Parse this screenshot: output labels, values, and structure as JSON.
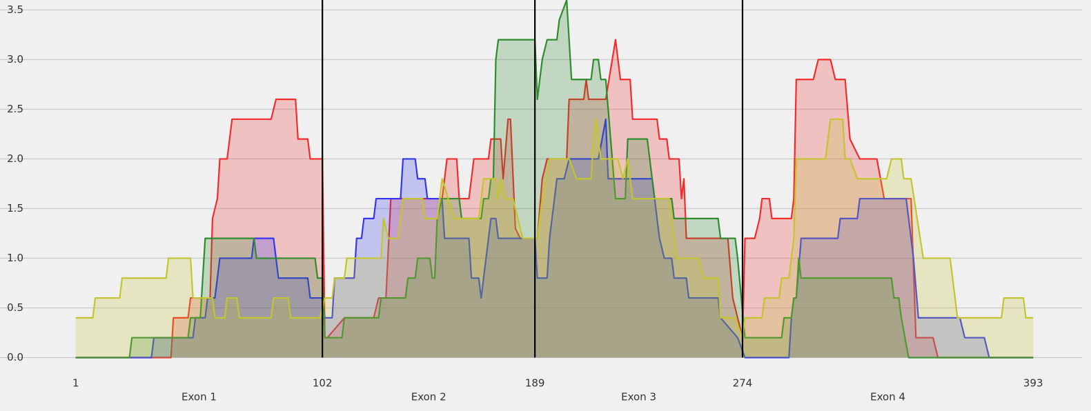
{
  "chart_data": {
    "type": "area",
    "xlim": [
      -30,
      413
    ],
    "ylim": [
      -0.08,
      3.6
    ],
    "xticks": [
      1,
      102,
      189,
      274,
      393
    ],
    "yticks": [
      {
        "value": 0,
        "label": "0.0"
      },
      0.5,
      {
        "value": 1,
        "label": "1.0"
      },
      1.5,
      {
        "value": 2,
        "label": "2.0"
      },
      2.5,
      {
        "value": 3,
        "label": "3.0"
      },
      3.5
    ],
    "sections": [
      "Exon 1",
      "Exon 2",
      "Exon 3",
      "Exon 4"
    ],
    "vlines": [
      102,
      189,
      274
    ],
    "vline_color": "#000000",
    "grid": true,
    "series": [
      {
        "color": "#f22c2c",
        "x": [
          1,
          40,
          41,
          47,
          48,
          56,
          57,
          59,
          60,
          63,
          65,
          81,
          83,
          91,
          92,
          96,
          97,
          102,
          103,
          104,
          111,
          123,
          125,
          128,
          130,
          151,
          153,
          157,
          158,
          162,
          164,
          170,
          171,
          175,
          176,
          178,
          179,
          181,
          183,
          189,
          190,
          192,
          194,
          202,
          203,
          209,
          210,
          211,
          216,
          218,
          222,
          224,
          228,
          229,
          239,
          240,
          243,
          244,
          248,
          249,
          250,
          251,
          268,
          270,
          274,
          275,
          279,
          281,
          282,
          285,
          286,
          294,
          295,
          296,
          303,
          305,
          310,
          312,
          316,
          318,
          322,
          329,
          332,
          343,
          345,
          352,
          354,
          393
        ],
        "values": [
          0,
          0,
          0.4,
          0.4,
          0.6,
          0.6,
          1.4,
          1.6,
          2,
          2,
          2.4,
          2.4,
          2.6,
          2.6,
          2.2,
          2.2,
          2,
          2,
          0.2,
          0.2,
          0.4,
          0.4,
          0.6,
          0.6,
          1.6,
          1.6,
          2,
          2,
          1.6,
          1.6,
          2,
          2,
          2.2,
          2.2,
          1.8,
          2.4,
          2.4,
          1.3,
          1.2,
          1.2,
          1.2,
          1.8,
          2,
          2,
          2.6,
          2.6,
          2.8,
          2.6,
          2.6,
          2.6,
          3.2,
          2.8,
          2.8,
          2.4,
          2.4,
          2.2,
          2.2,
          2,
          2,
          1.6,
          1.8,
          1.2,
          1.2,
          0.6,
          0.2,
          1.2,
          1.2,
          1.4,
          1.6,
          1.6,
          1.4,
          1.4,
          1.6,
          2.8,
          2.8,
          3,
          3,
          2.8,
          2.8,
          2.2,
          2,
          2,
          1.6,
          1.6,
          0.2,
          0.2,
          0,
          0
        ]
      },
      {
        "color": "#3535f0",
        "x": [
          1,
          32,
          33,
          49,
          50,
          54,
          55,
          58,
          60,
          73,
          74,
          82,
          83,
          84,
          96,
          97,
          102,
          103,
          106,
          107,
          115,
          116,
          118,
          119,
          123,
          124,
          134,
          135,
          140,
          141,
          144,
          145,
          151,
          152,
          162,
          163,
          166,
          167,
          168,
          170,
          171,
          173,
          174,
          189,
          190,
          194,
          195,
          196,
          198,
          201,
          203,
          215,
          218,
          219,
          237,
          238,
          239,
          240,
          242,
          245,
          246,
          251,
          252,
          264,
          265,
          272,
          275,
          293,
          294,
          295,
          296,
          298,
          313,
          314,
          321,
          322,
          341,
          344,
          346,
          363,
          365,
          373,
          375,
          393
        ],
        "values": [
          0,
          0,
          0.2,
          0.2,
          0.4,
          0.4,
          0.6,
          0.6,
          1,
          1,
          1.2,
          1.2,
          1,
          0.8,
          0.8,
          0.6,
          0.6,
          0.4,
          0.4,
          0.8,
          0.8,
          1.2,
          1.2,
          1.4,
          1.4,
          1.6,
          1.6,
          2,
          2,
          1.8,
          1.8,
          1.6,
          1.6,
          1.2,
          1.2,
          0.8,
          0.8,
          0.6,
          0.8,
          1.2,
          1.4,
          1.4,
          1.2,
          1.2,
          0.8,
          0.8,
          1.2,
          1.4,
          1.8,
          1.8,
          2,
          2,
          2.4,
          1.8,
          1.8,
          1.6,
          1.4,
          1.2,
          1,
          1,
          0.8,
          0.8,
          0.6,
          0.6,
          0.4,
          0.2,
          0,
          0,
          0.4,
          0.6,
          0.6,
          1.2,
          1.2,
          1.4,
          1.4,
          1.6,
          1.6,
          1,
          0.4,
          0.4,
          0.2,
          0.2,
          0,
          0
        ]
      },
      {
        "color": "#2e8b2e",
        "x": [
          1,
          23,
          24,
          47,
          48,
          52,
          54,
          74,
          75,
          99,
          100,
          102,
          103,
          110,
          111,
          125,
          126,
          136,
          137,
          140,
          141,
          146,
          147,
          148,
          149,
          151,
          158,
          159,
          167,
          168,
          170,
          171,
          172,
          173,
          174,
          189,
          190,
          192,
          194,
          198,
          199,
          202,
          204,
          212,
          213,
          215,
          216,
          218,
          222,
          226,
          227,
          235,
          238,
          245,
          246,
          248,
          264,
          265,
          271,
          272,
          275,
          290,
          291,
          294,
          295,
          296,
          297,
          298,
          335,
          336,
          338,
          339,
          342,
          393
        ],
        "values": [
          0,
          0,
          0.2,
          0.2,
          0.4,
          0.4,
          1.2,
          1.2,
          1,
          1,
          0.8,
          0.8,
          0.2,
          0.2,
          0.4,
          0.4,
          0.6,
          0.6,
          0.8,
          0.8,
          1,
          1,
          0.8,
          0.8,
          1.4,
          1.6,
          1.6,
          1.4,
          1.4,
          1.6,
          1.6,
          1.8,
          1.8,
          3,
          3.2,
          3.2,
          2.6,
          3,
          3.2,
          3.2,
          3.4,
          3.6,
          2.8,
          2.8,
          3,
          3,
          2.8,
          2.8,
          1.6,
          1.6,
          2.2,
          2.2,
          1.6,
          1.6,
          1.4,
          1.4,
          1.4,
          1.2,
          1.2,
          1,
          0.2,
          0.2,
          0.4,
          0.4,
          0.6,
          0.6,
          1,
          0.8,
          0.8,
          0.6,
          0.6,
          0.4,
          0,
          0
        ]
      },
      {
        "color": "#c4c431",
        "x": [
          1,
          8,
          9,
          19,
          20,
          38,
          39,
          48,
          49,
          57,
          58,
          62,
          63,
          67,
          68,
          81,
          82,
          88,
          89,
          101,
          103,
          106,
          107,
          111,
          112,
          126,
          127,
          129,
          133,
          135,
          143,
          144,
          149,
          151,
          156,
          166,
          168,
          173,
          174,
          175,
          177,
          180,
          184,
          190,
          192,
          195,
          203,
          206,
          212,
          213,
          214,
          216,
          223,
          225,
          227,
          229,
          244,
          245,
          247,
          256,
          258,
          264,
          265,
          271,
          274,
          275,
          282,
          283,
          289,
          290,
          293,
          294,
          295,
          296,
          308,
          310,
          315,
          316,
          318,
          321,
          333,
          335,
          339,
          340,
          343,
          348,
          359,
          362,
          380,
          381,
          389,
          390,
          393
        ],
        "values": [
          0.4,
          0.4,
          0.6,
          0.6,
          0.8,
          0.8,
          1,
          1,
          0.6,
          0.6,
          0.4,
          0.4,
          0.6,
          0.6,
          0.4,
          0.4,
          0.6,
          0.6,
          0.4,
          0.4,
          0.6,
          0.6,
          0.8,
          0.8,
          1,
          1,
          1.4,
          1.2,
          1.2,
          1.6,
          1.6,
          1.4,
          1.4,
          1.8,
          1.4,
          1.4,
          1.8,
          1.8,
          1.6,
          1.8,
          1.6,
          1.6,
          1.2,
          1.2,
          1.6,
          2,
          2,
          1.8,
          1.8,
          2.2,
          2.4,
          2,
          2,
          1.8,
          2,
          1.6,
          1.6,
          1.4,
          1,
          1,
          0.8,
          0.8,
          0.4,
          0.4,
          0.2,
          0.4,
          0.4,
          0.6,
          0.6,
          0.8,
          0.8,
          1,
          1.2,
          2,
          2,
          2.4,
          2.4,
          2,
          2,
          1.8,
          1.8,
          2,
          2,
          1.8,
          1.8,
          1,
          1,
          0.4,
          0.4,
          0.6,
          0.6,
          0.4,
          0.4
        ]
      }
    ]
  }
}
